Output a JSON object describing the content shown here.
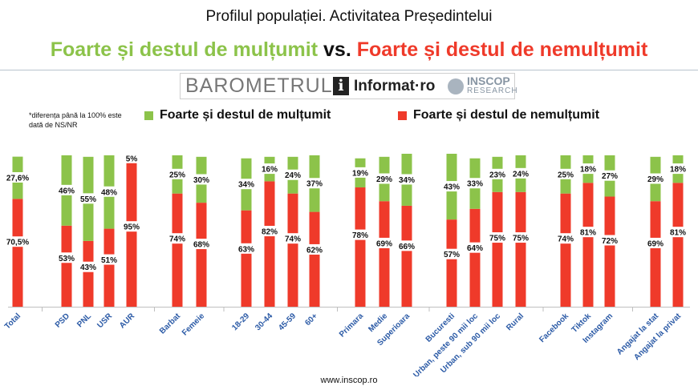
{
  "header": {
    "title": "Profilul populației. Activitatea Președintelui",
    "headline_green": "Foarte și destul de mulțumit",
    "headline_vs": "vs.",
    "headline_red": "Foarte și destul de nemulțumit"
  },
  "banner": {
    "barometrul": "BAROMETRUL",
    "informat_icon_text": "i",
    "informat": "Informat·ro",
    "inscop": "INSCOP",
    "research": "RESEARCH"
  },
  "note": "*diferența până la 100% este dată de NS/NR",
  "footer": "www.inscop.ro",
  "colors": {
    "green": "#8cc34a",
    "red": "#ef3a2a"
  },
  "chart_data": {
    "type": "bar",
    "stacked": true,
    "ylim": [
      0,
      100
    ],
    "grid": false,
    "legend_position": "top",
    "categories": [
      "Total",
      "PSD",
      "PNL",
      "USR",
      "AUR",
      "Barbat",
      "Femeie",
      "18-29",
      "30-44",
      "45-59",
      "60+",
      "Primara",
      "Medie",
      "Superioara",
      "Bucuresti",
      "Urban, peste 90 mii loc",
      "Urban, sub 90 mii loc",
      "Rural",
      "Facebook",
      "Tiktok",
      "Instagram",
      "Angajat la stat",
      "Angajat la privat"
    ],
    "groups": [
      [
        0
      ],
      [
        1,
        2,
        3,
        4
      ],
      [
        5,
        6
      ],
      [
        7,
        8,
        9,
        10
      ],
      [
        11,
        12,
        13
      ],
      [
        14,
        15,
        16,
        17
      ],
      [
        18,
        19,
        20
      ],
      [
        21,
        22
      ]
    ],
    "series": [
      {
        "name": "Foarte și destul de nemulțumit",
        "color": "#ef3a2a",
        "values": [
          70.5,
          53,
          43,
          51,
          95,
          74,
          68,
          63,
          82,
          74,
          62,
          78,
          69,
          66,
          57,
          64,
          75,
          75,
          74,
          81,
          72,
          69,
          81
        ],
        "labels": [
          "70,5%",
          "53%",
          "43%",
          "51%",
          "95%",
          "74%",
          "68%",
          "63%",
          "82%",
          "74%",
          "62%",
          "78%",
          "69%",
          "66%",
          "57%",
          "64%",
          "75%",
          "75%",
          "74%",
          "81%",
          "72%",
          "69%",
          "81%"
        ]
      },
      {
        "name": "Foarte și destul de mulțumit",
        "color": "#8cc34a",
        "values": [
          27.6,
          46,
          55,
          48,
          5,
          25,
          30,
          34,
          16,
          24,
          37,
          19,
          29,
          34,
          43,
          33,
          23,
          24,
          25,
          18,
          27,
          29,
          18
        ],
        "labels": [
          "27,6%",
          "46%",
          "55%",
          "48%",
          "5%",
          "25%",
          "30%",
          "34%",
          "16%",
          "24%",
          "37%",
          "19%",
          "29%",
          "34%",
          "43%",
          "33%",
          "23%",
          "24%",
          "25%",
          "18%",
          "27%",
          "29%",
          "18%"
        ]
      }
    ]
  }
}
